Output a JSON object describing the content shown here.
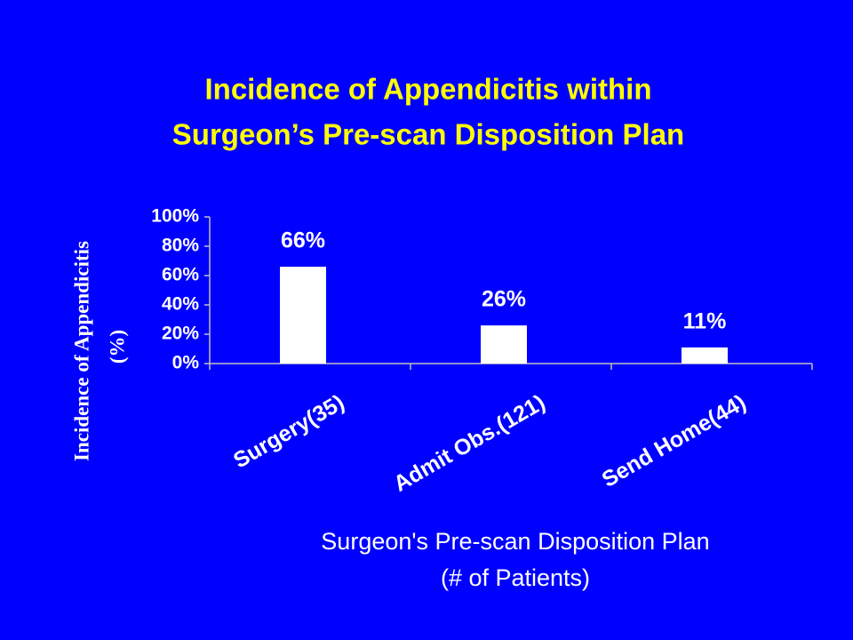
{
  "chart_data": {
    "type": "bar",
    "title": [
      "Incidence of Appendicitis within",
      "Surgeon’s Pre-scan Disposition Plan"
    ],
    "y_label": [
      "Incidence of Appendicitis",
      "(%)"
    ],
    "x_label": [
      "Surgeon's Pre-scan Disposition Plan",
      "(# of Patients)"
    ],
    "categories": [
      "Surgery(35)",
      "Admit Obs.(121)",
      "Send Home(44)"
    ],
    "values": [
      66,
      26,
      11
    ],
    "value_labels": [
      "66%",
      "26%",
      "11%"
    ],
    "color": "#ffffff",
    "ylim": [
      0,
      100
    ],
    "yticks": [
      {
        "value": 0,
        "label": "0%"
      },
      {
        "value": 20,
        "label": "20%"
      },
      {
        "value": 40,
        "label": "40%"
      },
      {
        "value": 60,
        "label": "60%"
      },
      {
        "value": 80,
        "label": "80%"
      },
      {
        "value": 100,
        "label": "100%"
      }
    ]
  }
}
